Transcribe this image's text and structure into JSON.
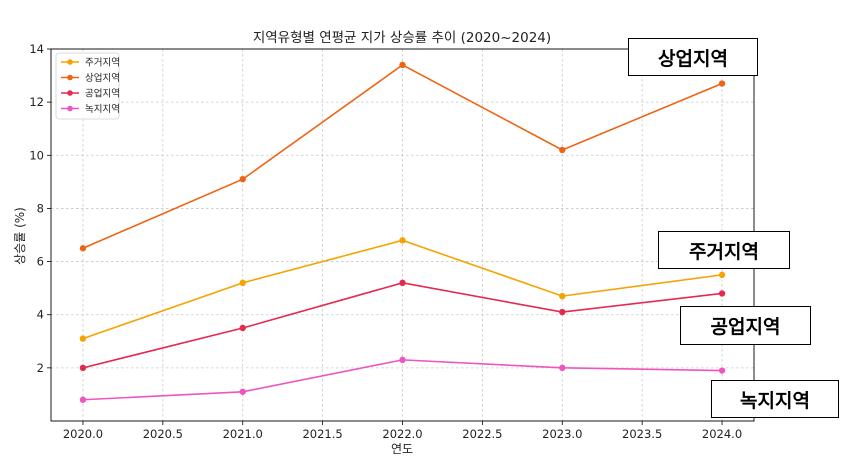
{
  "chart_data": {
    "type": "line",
    "title": "지역유형별 연평균 지가 상승률 추이 (2020~2024)",
    "xlabel": "연도",
    "ylabel": "상승률 (%)",
    "x": [
      2020,
      2021,
      2022,
      2023,
      2024
    ],
    "xlim": [
      2019.8,
      2024.2
    ],
    "ylim": [
      0,
      14
    ],
    "xticks": [
      "2020.0",
      "2020.5",
      "2021.0",
      "2021.5",
      "2022.0",
      "2022.5",
      "2023.0",
      "2023.5",
      "2024.0"
    ],
    "yticks": [
      "2",
      "4",
      "6",
      "8",
      "10",
      "12",
      "14"
    ],
    "grid": true,
    "legend_position": "top-left",
    "series": [
      {
        "name": "주거지역",
        "color": "#f5a300",
        "values": [
          3.1,
          5.2,
          6.8,
          4.7,
          5.5
        ]
      },
      {
        "name": "상업지역",
        "color": "#ef6414",
        "values": [
          6.5,
          9.1,
          13.4,
          10.2,
          12.7
        ]
      },
      {
        "name": "공업지역",
        "color": "#e5294f",
        "values": [
          2.0,
          3.5,
          5.2,
          4.1,
          4.8
        ]
      },
      {
        "name": "녹지지역",
        "color": "#ef55c0",
        "values": [
          0.8,
          1.1,
          2.3,
          2.0,
          1.9
        ]
      }
    ]
  },
  "callouts": {
    "commercial": "상업지역",
    "residential": "주거지역",
    "industrial": "공업지역",
    "green": "녹지지역"
  }
}
